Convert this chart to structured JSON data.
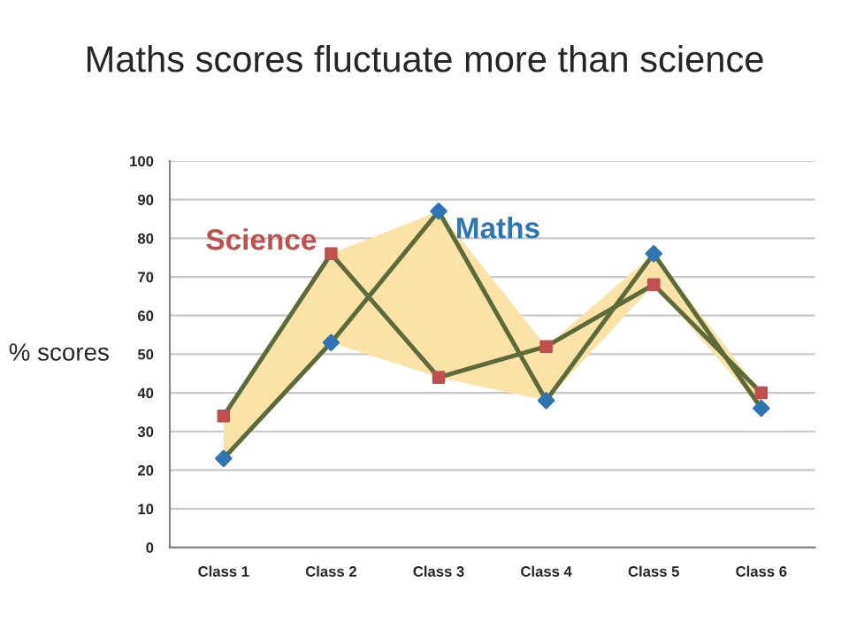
{
  "chart_data": {
    "type": "line",
    "title": "Maths scores fluctuate more than science",
    "ylabel": "% scores",
    "categories": [
      "Class 1",
      "Class 2",
      "Class 3",
      "Class 4",
      "Class 5",
      "Class 6"
    ],
    "series": [
      {
        "name": "Science",
        "color": "#c0504d",
        "marker": "square",
        "values": [
          34,
          76,
          44,
          52,
          68,
          40
        ]
      },
      {
        "name": "Maths",
        "color": "#2e75b6",
        "marker": "diamond",
        "values": [
          23,
          53,
          87,
          38,
          76,
          36
        ],
        "lower": [
          23,
          53,
          44,
          38,
          68,
          36
        ],
        "upper": [
          34,
          76,
          87,
          52,
          76,
          40
        ]
      }
    ],
    "ylim": [
      0,
      100
    ],
    "yticks": [
      0,
      10,
      20,
      30,
      40,
      50,
      60,
      70,
      80,
      90,
      100
    ],
    "grid": "y",
    "legend": false
  }
}
